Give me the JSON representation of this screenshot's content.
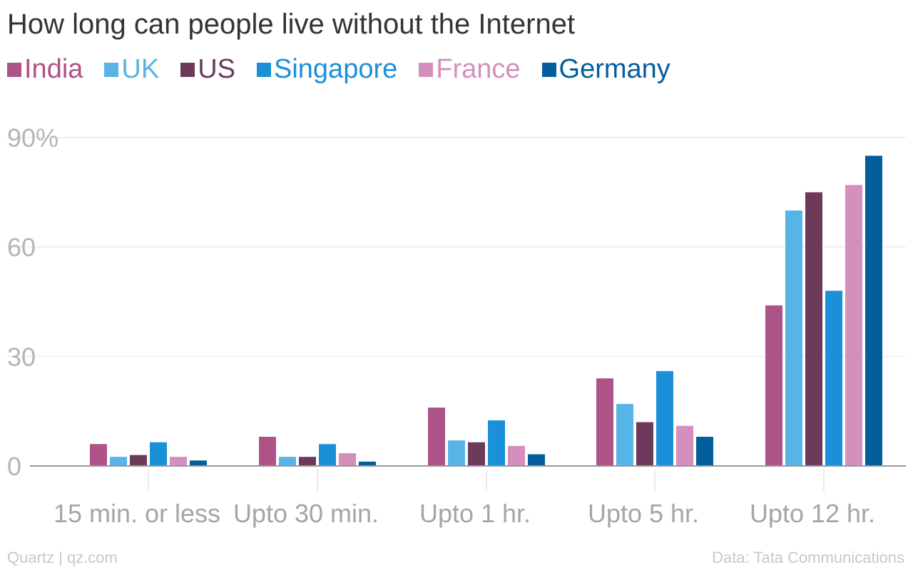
{
  "chart_data": {
    "type": "bar",
    "title": "How long can people live without the Internet",
    "categories": [
      "15 min. or less",
      "Upto 30 min.",
      "Upto 1 hr.",
      "Upto 5 hr.",
      "Upto 12 hr."
    ],
    "series": [
      {
        "name": "India",
        "color": "#ad5387",
        "values": [
          6,
          8,
          16,
          24,
          44
        ]
      },
      {
        "name": "UK",
        "color": "#56b4e6",
        "values": [
          2.5,
          2.5,
          7,
          17,
          70
        ]
      },
      {
        "name": "US",
        "color": "#6e3a5b",
        "values": [
          3,
          2.5,
          6.5,
          12,
          75
        ]
      },
      {
        "name": "Singapore",
        "color": "#1a90d9",
        "values": [
          6.5,
          6,
          12.5,
          26,
          48
        ]
      },
      {
        "name": "France",
        "color": "#d48fbc",
        "values": [
          2.5,
          3.5,
          5.5,
          11,
          77
        ]
      },
      {
        "name": "Germany",
        "color": "#045e9c",
        "values": [
          1.5,
          1.2,
          3.2,
          8,
          85
        ]
      }
    ],
    "yticks": [
      {
        "value": 0,
        "label": "0"
      },
      {
        "value": 30,
        "label": "30"
      },
      {
        "value": 60,
        "label": "60"
      },
      {
        "value": 90,
        "label": "90%"
      }
    ],
    "ylim": [
      0,
      90
    ],
    "xlabel": "",
    "ylabel": "",
    "grid": true,
    "legend_position": "top-left"
  },
  "footer": {
    "source_left": "Quartz | qz.com",
    "source_right": "Data: Tata Communications"
  }
}
